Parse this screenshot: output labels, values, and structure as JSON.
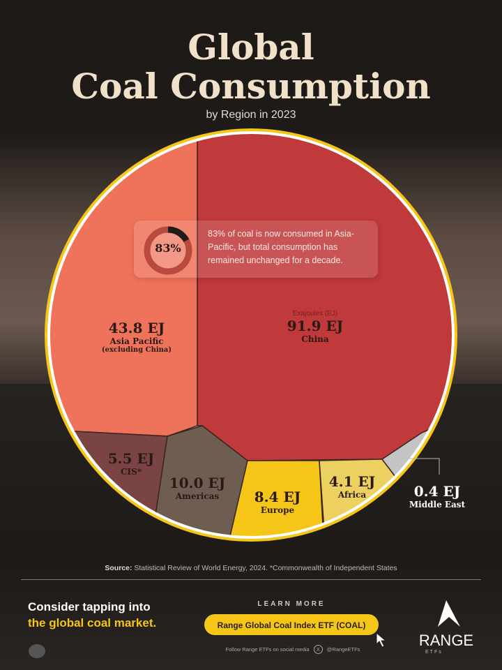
{
  "header": {
    "title_line1": "Global",
    "title_line2": "Coal Consumption",
    "subtitle": "by Region in 2023"
  },
  "callout": {
    "percent": "83%",
    "percent_value": 83,
    "text": "83% of coal is now consumed in Asia-Pacific, but total consumption has remained unchanged for a decade."
  },
  "chart_data": {
    "type": "voronoi-treemap",
    "unit_label": "Exajoules (EJ)",
    "series": [
      {
        "name": "China",
        "value": 91.9,
        "label": "91.9 EJ",
        "color": "#c0393b"
      },
      {
        "name": "Asia Pacific",
        "sublabel": "(excluding China)",
        "value": 43.8,
        "label": "43.8 EJ",
        "color": "#ef735a"
      },
      {
        "name": "Americas",
        "value": 10.0,
        "label": "10.0 EJ",
        "color": "#6e5e52"
      },
      {
        "name": "Europe",
        "value": 8.4,
        "label": "8.4 EJ",
        "color": "#f5c518"
      },
      {
        "name": "CIS*",
        "value": 5.5,
        "label": "5.5 EJ",
        "color": "#7a4444"
      },
      {
        "name": "Africa",
        "value": 4.1,
        "label": "4.1 EJ",
        "color": "#ecd060"
      },
      {
        "name": "Middle East",
        "value": 0.4,
        "label": "0.4 EJ",
        "color": "#c4c4c4"
      }
    ]
  },
  "footer": {
    "source_label": "Source:",
    "source_text": " Statistical Review of World Energy, 2024. *Commonwealth of Independent States",
    "cta_line1": "Consider tapping into",
    "cta_line2": "the global coal market.",
    "learn_more": "LEARN MORE",
    "button": "Range Global Coal Index ETF (COAL)",
    "follow": "Follow Range ETFs on social media",
    "handle": "@RangeETFs",
    "brand": "RANGE",
    "brand_sub": "ETFs"
  }
}
